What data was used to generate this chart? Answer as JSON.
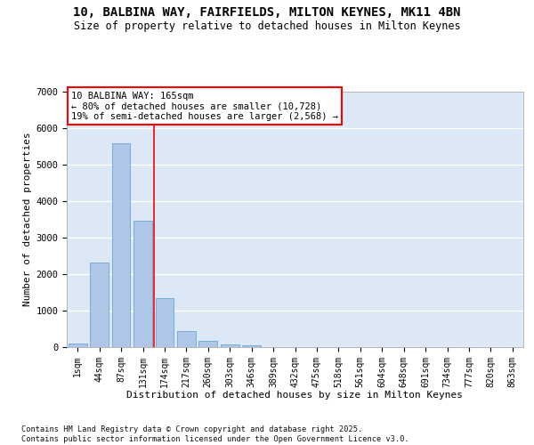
{
  "title_line1": "10, BALBINA WAY, FAIRFIELDS, MILTON KEYNES, MK11 4BN",
  "title_line2": "Size of property relative to detached houses in Milton Keynes",
  "xlabel": "Distribution of detached houses by size in Milton Keynes",
  "ylabel": "Number of detached properties",
  "categories": [
    "1sqm",
    "44sqm",
    "87sqm",
    "131sqm",
    "174sqm",
    "217sqm",
    "260sqm",
    "303sqm",
    "346sqm",
    "389sqm",
    "432sqm",
    "475sqm",
    "518sqm",
    "561sqm",
    "604sqm",
    "648sqm",
    "691sqm",
    "734sqm",
    "777sqm",
    "820sqm",
    "863sqm"
  ],
  "values": [
    100,
    2320,
    5580,
    3460,
    1340,
    440,
    165,
    80,
    50,
    0,
    0,
    0,
    0,
    0,
    0,
    0,
    0,
    0,
    0,
    0,
    0
  ],
  "bar_color": "#aec6e8",
  "bar_edgecolor": "#5b9bd5",
  "vline_pos": 3.5,
  "vline_color": "red",
  "annotation_line1": "10 BALBINA WAY: 165sqm",
  "annotation_line2": "← 80% of detached houses are smaller (10,728)",
  "annotation_line3": "19% of semi-detached houses are larger (2,568) →",
  "annotation_box_edgecolor": "red",
  "ylim_max": 7000,
  "yticks": [
    0,
    1000,
    2000,
    3000,
    4000,
    5000,
    6000,
    7000
  ],
  "plot_bg_color": "#dce8f5",
  "grid_color": "#ffffff",
  "footer_text": "Contains HM Land Registry data © Crown copyright and database right 2025.\nContains public sector information licensed under the Open Government Licence v3.0."
}
